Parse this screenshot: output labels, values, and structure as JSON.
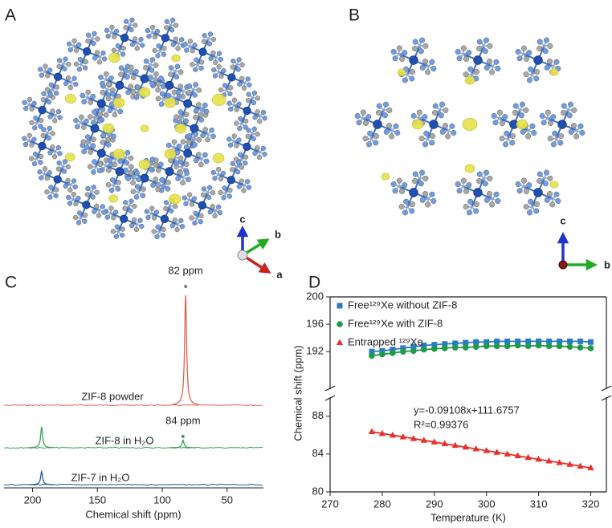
{
  "panels": [
    {
      "label": "A",
      "axes": [
        "c",
        "b",
        "a"
      ]
    },
    {
      "label": "B",
      "axes": [
        "c",
        "b"
      ]
    }
  ],
  "chart_data": [
    {
      "type": "spectrum",
      "label": "C",
      "xlabel": "Chemical shift (ppm)",
      "xlim": [
        222,
        22
      ],
      "xticks": [
        200,
        150,
        100,
        50
      ],
      "series": [
        {
          "name": "ZIF-8 powder",
          "color": "#e0614f",
          "peak_x": [
            82
          ],
          "peak_height": [
            1
          ]
        },
        {
          "name": "ZIF-8 in H₂O",
          "color": "#3aa05a",
          "peak_x": [
            193,
            84
          ],
          "peak_height": [
            0.19,
            0.07
          ]
        },
        {
          "name": "ZIF-7 in H₂O",
          "color": "#1f5fa0",
          "peak_x": [
            193
          ],
          "peak_height": [
            0.12
          ]
        }
      ],
      "annotations": [
        {
          "text": "82 ppm",
          "mark": "*",
          "x": 82
        },
        {
          "text": "84 ppm",
          "mark": "*",
          "x": 84
        }
      ]
    },
    {
      "type": "line",
      "label": "D",
      "xlabel": "Temperature (K)",
      "ylabel": "Chemical shift (ppm)",
      "xlim": [
        270,
        323
      ],
      "xticks": [
        270,
        280,
        290,
        300,
        310,
        320
      ],
      "ylim_upper": [
        186.5,
        200
      ],
      "yticks_upper": [
        192,
        196,
        200
      ],
      "ylim_lower": [
        80,
        90
      ],
      "yticks_lower": [
        80,
        84,
        88
      ],
      "x": [
        278,
        280,
        282,
        284,
        286,
        288,
        290,
        292,
        294,
        296,
        298,
        300,
        302,
        304,
        306,
        308,
        310,
        312,
        314,
        316,
        318,
        320
      ],
      "series": [
        {
          "name": "Free¹²⁹Xe without ZIF-8",
          "color": "#2a7bc6",
          "marker": "square",
          "axis": "upper",
          "values": [
            192.0,
            192.1,
            192.3,
            192.5,
            192.7,
            192.9,
            193.0,
            193.1,
            193.2,
            193.3,
            193.4,
            193.4,
            193.5,
            193.5,
            193.5,
            193.5,
            193.5,
            193.5,
            193.5,
            193.5,
            193.5,
            193.4
          ]
        },
        {
          "name": "Free¹²⁹Xe with ZIF-8",
          "color": "#1e9a48",
          "marker": "circle",
          "axis": "upper",
          "values": [
            191.4,
            191.6,
            191.8,
            192.0,
            192.1,
            192.3,
            192.4,
            192.5,
            192.6,
            192.6,
            192.7,
            192.8,
            192.8,
            192.8,
            192.9,
            192.8,
            192.9,
            192.8,
            192.8,
            192.7,
            192.6,
            192.5
          ]
        },
        {
          "name": "Entrapped ¹²⁹Xe",
          "color": "#e8312a",
          "marker": "triangle",
          "axis": "lower",
          "values": [
            86.36,
            86.17,
            85.99,
            85.81,
            85.63,
            85.44,
            85.26,
            85.08,
            84.9,
            84.72,
            84.53,
            84.35,
            84.17,
            83.99,
            83.81,
            83.62,
            83.44,
            83.26,
            83.08,
            82.9,
            82.71,
            82.53
          ]
        }
      ],
      "annotations": [
        "y=-0.09108x+111.6757",
        "R²=0.99376"
      ]
    }
  ]
}
